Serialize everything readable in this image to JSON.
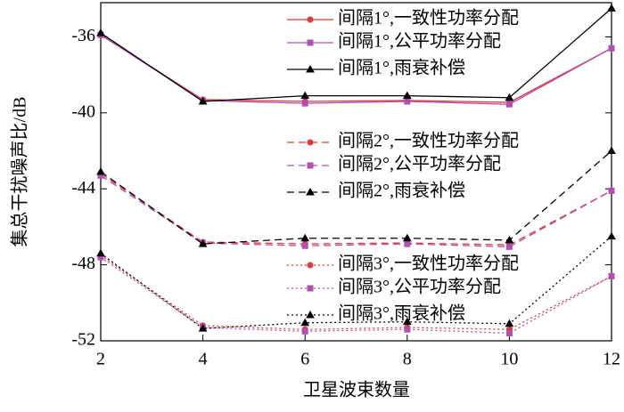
{
  "chart_data": {
    "type": "line",
    "x_label": "卫星波束数量",
    "y_label": "集总干扰噪声比/dB",
    "x": [
      2,
      4,
      6,
      8,
      10,
      12
    ],
    "xlim": [
      2,
      12
    ],
    "xticks": [
      2,
      4,
      6,
      8,
      10,
      12
    ],
    "ylim": [
      -52,
      -34.2
    ],
    "yticks": [
      -52,
      -48,
      -44,
      -40,
      -36
    ],
    "series": [
      {
        "name": "间隔1°,一致性功率分配",
        "color": "#e03a3a",
        "dash": "solid",
        "marker": "circle",
        "values": [
          -35.9,
          -39.3,
          -39.4,
          -39.35,
          -39.45,
          -36.6
        ]
      },
      {
        "name": "间隔1°,公平功率分配",
        "color": "#b050b0",
        "dash": "solid",
        "marker": "square",
        "values": [
          -35.9,
          -39.35,
          -39.5,
          -39.4,
          -39.55,
          -36.6
        ]
      },
      {
        "name": "间隔1°,雨衰补偿",
        "color": "#000000",
        "dash": "solid",
        "marker": "triangle",
        "values": [
          -35.8,
          -39.4,
          -39.1,
          -39.1,
          -39.2,
          -34.5
        ]
      },
      {
        "name": "间隔2°,一致性功率分配",
        "color": "#e03a3a",
        "dash": "dashed",
        "marker": "circle",
        "values": [
          -43.2,
          -46.8,
          -46.9,
          -46.85,
          -46.95,
          -44.1
        ]
      },
      {
        "name": "间隔2°,公平功率分配",
        "color": "#b050b0",
        "dash": "dashed",
        "marker": "square",
        "values": [
          -43.3,
          -46.85,
          -47.0,
          -46.9,
          -47.05,
          -44.1
        ]
      },
      {
        "name": "间隔2°,雨衰补偿",
        "color": "#000000",
        "dash": "dashed",
        "marker": "triangle",
        "values": [
          -43.1,
          -46.9,
          -46.6,
          -46.6,
          -46.7,
          -42.0
        ]
      },
      {
        "name": "间隔3°,一致性功率分配",
        "color": "#e03a3a",
        "dash": "dotted",
        "marker": "circle",
        "values": [
          -47.5,
          -51.2,
          -51.4,
          -51.3,
          -51.4,
          -48.6
        ]
      },
      {
        "name": "间隔3°,公平功率分配",
        "color": "#b050b0",
        "dash": "dotted",
        "marker": "square",
        "values": [
          -47.6,
          -51.3,
          -51.5,
          -51.4,
          -51.6,
          -48.6
        ]
      },
      {
        "name": "间隔3°,雨衰补偿",
        "color": "#000000",
        "dash": "dotted",
        "marker": "triangle",
        "values": [
          -47.4,
          -51.35,
          -51.05,
          -51.0,
          -51.1,
          -46.5
        ]
      }
    ]
  }
}
